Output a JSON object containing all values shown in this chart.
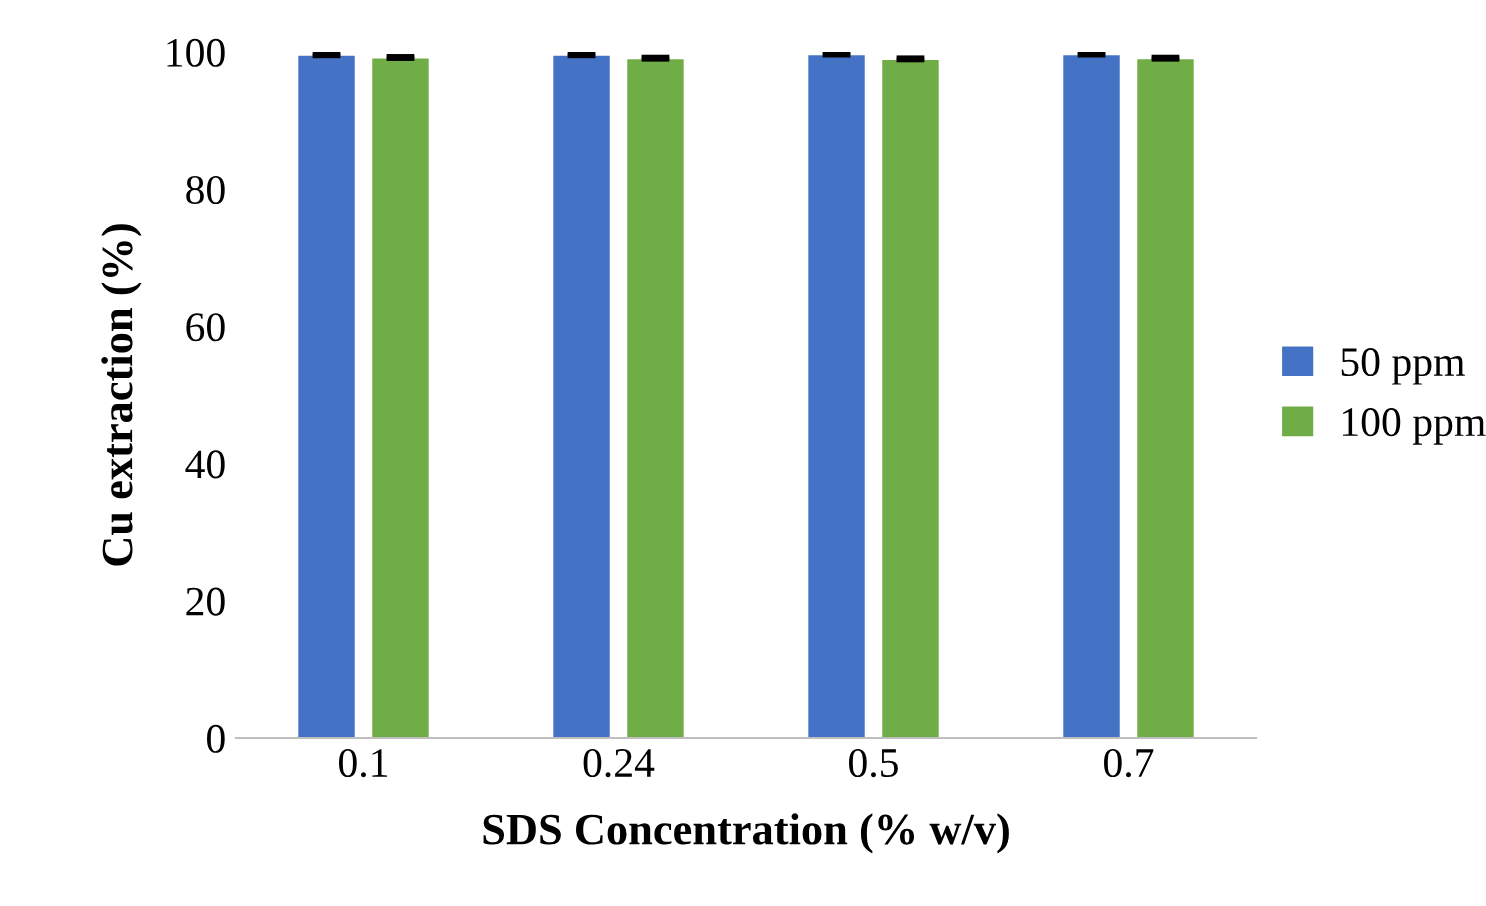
{
  "chart_data": {
    "type": "bar",
    "xlabel": "SDS Concentration (% w/v)",
    "ylabel": "Cu extraction (%)",
    "categories": [
      "0.1",
      "0.24",
      "0.5",
      "0.7"
    ],
    "series": [
      {
        "name": "50 ppm",
        "color": "#4472c4",
        "values": [
          99.6,
          99.6,
          99.7,
          99.7
        ],
        "errors": [
          0.2,
          0.2,
          0.2,
          0.2
        ]
      },
      {
        "name": "100 ppm",
        "color": "#70ad47",
        "values": [
          99.2,
          99.1,
          99.0,
          99.1
        ],
        "errors": [
          0.2,
          0.2,
          0.2,
          0.2
        ]
      }
    ],
    "ylim": [
      0,
      100
    ],
    "yticks": [
      0,
      20,
      40,
      60,
      80,
      100
    ],
    "grid": false,
    "legend": "right"
  }
}
